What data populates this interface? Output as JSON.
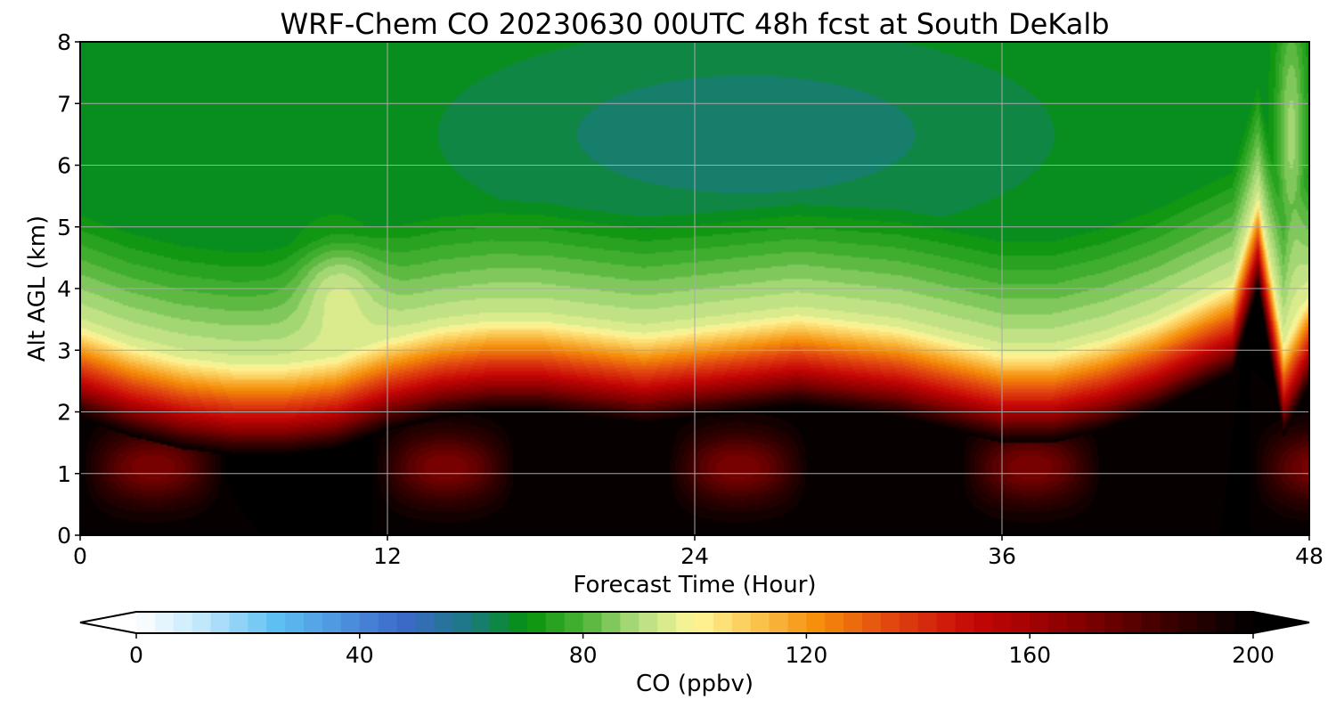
{
  "chart_data": {
    "type": "heatmap",
    "title": "WRF-Chem CO  20230630 00UTC 48h fcst at South DeKalb",
    "xlabel": "Forecast Time (Hour)",
    "ylabel": "Alt AGL (km)",
    "xlim": [
      0,
      48
    ],
    "ylim": [
      0,
      8
    ],
    "x_ticks": [
      0,
      12,
      24,
      36,
      48
    ],
    "y_ticks": [
      0,
      1,
      2,
      3,
      4,
      5,
      6,
      7,
      8
    ],
    "grid": true,
    "colorbar": {
      "label": "CO  (ppbv)",
      "min": 0,
      "max": 200,
      "ticks": [
        0,
        40,
        80,
        120,
        160,
        200
      ],
      "extend": "both",
      "stops": [
        {
          "v": 0,
          "color": "#ffffff"
        },
        {
          "v": 12,
          "color": "#bfe6fb"
        },
        {
          "v": 25,
          "color": "#5ec0f2"
        },
        {
          "v": 48,
          "color": "#3b68c8"
        },
        {
          "v": 60,
          "color": "#1a7a80"
        },
        {
          "v": 70,
          "color": "#05920a"
        },
        {
          "v": 80,
          "color": "#4bb235"
        },
        {
          "v": 90,
          "color": "#b4de80"
        },
        {
          "v": 100,
          "color": "#fff79a"
        },
        {
          "v": 110,
          "color": "#fbc956"
        },
        {
          "v": 122,
          "color": "#f58d0a"
        },
        {
          "v": 136,
          "color": "#e14210"
        },
        {
          "v": 150,
          "color": "#c60606"
        },
        {
          "v": 168,
          "color": "#880000"
        },
        {
          "v": 185,
          "color": "#3a0000"
        },
        {
          "v": 200,
          "color": "#000000"
        }
      ]
    },
    "field": {
      "description_hours": [
        0,
        2,
        4,
        6,
        8,
        10,
        12,
        14,
        16,
        18,
        20,
        22,
        24,
        26,
        28,
        30,
        32,
        34,
        36,
        38,
        40,
        42,
        44,
        45,
        46,
        47,
        48
      ],
      "pbl_top_km": [
        2.5,
        2.2,
        2.0,
        1.9,
        1.9,
        2.0,
        2.3,
        2.5,
        2.6,
        2.6,
        2.5,
        2.4,
        2.5,
        2.6,
        2.7,
        2.6,
        2.5,
        2.3,
        2.1,
        2.1,
        2.3,
        2.6,
        3.0,
        3.2,
        4.6,
        2.2,
        3.0
      ],
      "background_top_ppbv": 68,
      "near_surface_ppbv": 200
    }
  }
}
